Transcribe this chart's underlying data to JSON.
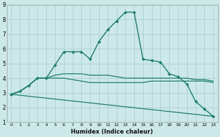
{
  "title": "",
  "xlabel": "Humidex (Indice chaleur)",
  "bg_color": "#cce8e8",
  "grid_color": "#aad0d0",
  "line_color": "#1a7a6e",
  "xlim": [
    -0.5,
    23.5
  ],
  "ylim": [
    1,
    9
  ],
  "xticks": [
    0,
    1,
    2,
    3,
    4,
    5,
    6,
    7,
    8,
    9,
    10,
    11,
    12,
    13,
    14,
    15,
    16,
    17,
    18,
    19,
    20,
    21,
    22,
    23
  ],
  "yticks": [
    1,
    2,
    3,
    4,
    5,
    6,
    7,
    8,
    9
  ],
  "lines": [
    {
      "x": [
        0,
        1,
        2,
        3,
        4,
        5,
        6,
        7,
        8,
        9,
        10,
        11,
        12,
        13,
        14,
        15,
        16,
        17,
        18,
        19,
        20,
        21,
        22,
        23
      ],
      "y": [
        2.9,
        3.1,
        3.5,
        4.0,
        4.0,
        4.9,
        5.8,
        5.8,
        5.8,
        5.3,
        6.5,
        7.3,
        7.9,
        8.5,
        8.5,
        5.3,
        5.2,
        5.1,
        4.3,
        4.1,
        3.6,
        2.4,
        1.9,
        1.4
      ],
      "marker": true
    },
    {
      "x": [
        0,
        1,
        2,
        3,
        4,
        5,
        6,
        7,
        8,
        9,
        10,
        11,
        12,
        13,
        14,
        15,
        16,
        17,
        18,
        19,
        20,
        21,
        22,
        23
      ],
      "y": [
        2.9,
        3.1,
        3.5,
        4.0,
        4.0,
        4.0,
        4.0,
        3.9,
        3.8,
        3.7,
        3.7,
        3.7,
        3.7,
        3.7,
        3.7,
        3.7,
        3.8,
        3.8,
        3.8,
        3.8,
        3.8,
        3.8,
        3.8,
        3.7
      ],
      "marker": false
    },
    {
      "x": [
        0,
        1,
        2,
        3,
        4,
        5,
        6,
        7,
        8,
        9,
        10,
        11,
        12,
        13,
        14,
        15,
        16,
        17,
        18,
        19,
        20,
        21,
        22,
        23
      ],
      "y": [
        2.9,
        3.1,
        3.5,
        4.0,
        4.0,
        4.2,
        4.3,
        4.3,
        4.3,
        4.2,
        4.2,
        4.2,
        4.1,
        4.0,
        4.0,
        4.0,
        4.0,
        4.0,
        4.0,
        4.0,
        4.0,
        3.9,
        3.9,
        3.8
      ],
      "marker": false
    },
    {
      "x": [
        0,
        23
      ],
      "y": [
        2.9,
        1.4
      ],
      "marker": false
    }
  ],
  "xlabel_fontsize": 6,
  "xtick_fontsize": 4.5,
  "ytick_fontsize": 5.5
}
